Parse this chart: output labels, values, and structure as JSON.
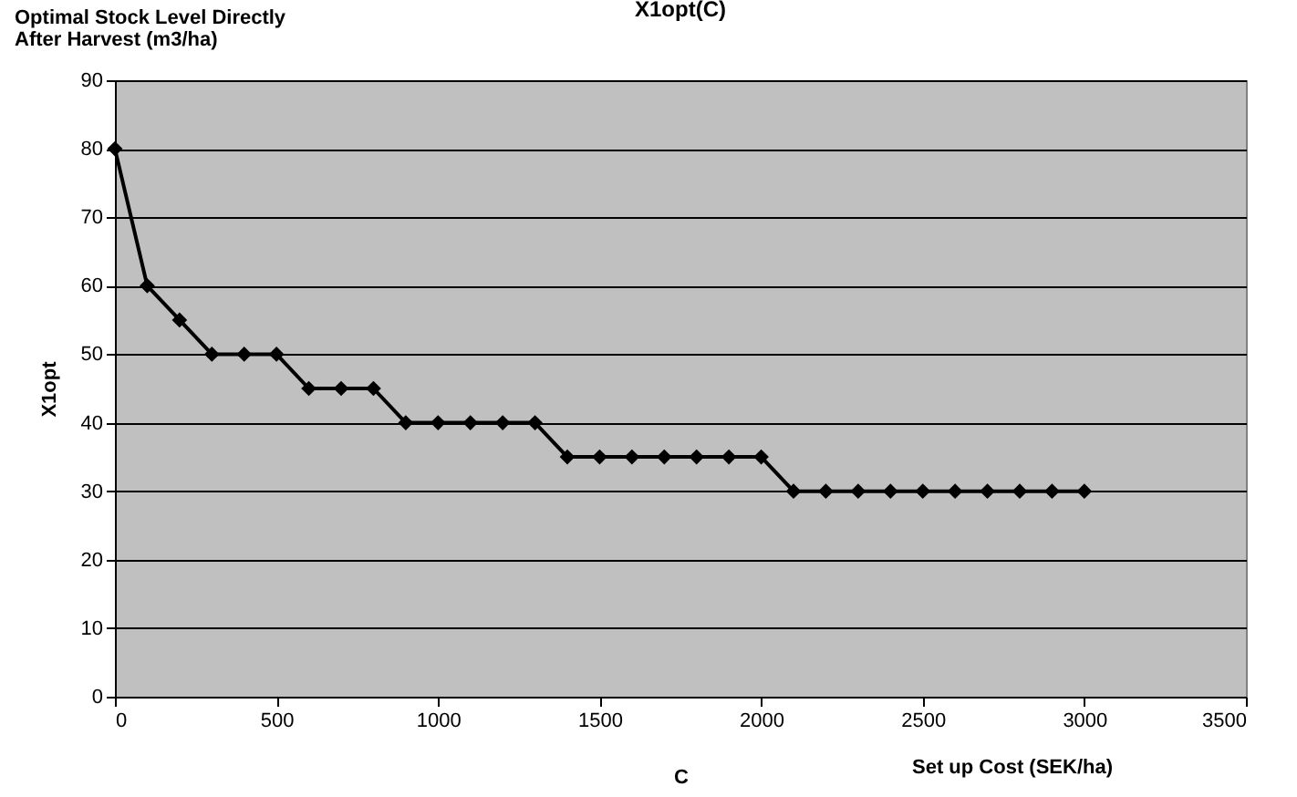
{
  "chart_data": {
    "type": "line",
    "title": "X1opt(C)",
    "xlabel": "C",
    "ylabel": "X1opt",
    "annotations": [
      "Optimal Stock Level Directly After Harvest (m3/ha)",
      "Set up Cost (SEK/ha)"
    ],
    "x": [
      0,
      100,
      200,
      300,
      400,
      500,
      600,
      700,
      800,
      900,
      1000,
      1100,
      1200,
      1300,
      1400,
      1500,
      1600,
      1700,
      1800,
      1900,
      2000,
      2100,
      2200,
      2300,
      2400,
      2500,
      2600,
      2700,
      2800,
      2900,
      3000
    ],
    "series": [
      {
        "color": "#000000",
        "values": [
          80,
          60,
          55,
          50,
          50,
          50,
          45,
          45,
          45,
          40,
          40,
          40,
          40,
          40,
          35,
          35,
          35,
          35,
          35,
          35,
          35,
          30,
          30,
          30,
          30,
          30,
          30,
          30,
          30,
          30,
          30
        ]
      }
    ],
    "xlim": [
      0,
      3500
    ],
    "xticks": [
      0,
      500,
      1000,
      1500,
      2000,
      2500,
      3000,
      3500
    ],
    "ylim": [
      0,
      90
    ],
    "yticks": [
      0,
      10,
      20,
      30,
      40,
      50,
      60,
      70,
      80,
      90
    ],
    "grid": "y",
    "marker": "diamond",
    "line_style": "solid"
  }
}
